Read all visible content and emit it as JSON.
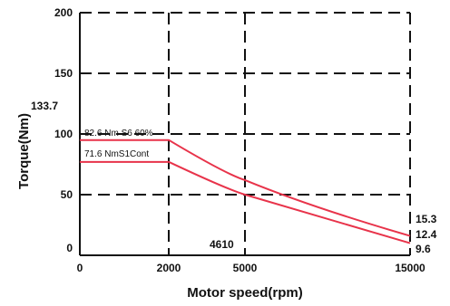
{
  "chart_data": {
    "type": "line",
    "title": "",
    "xlabel": "Motor speed(rpm)",
    "ylabel": "Torque(Nm)",
    "ylim": [
      0,
      200
    ],
    "yticks": [
      "200",
      "150",
      "100",
      "50",
      "0"
    ],
    "xtick_labels": [
      "0",
      "2000",
      "5000",
      "15000"
    ],
    "grid": true,
    "series": [
      {
        "name": "82.6 Nm S6 60%",
        "color": "#e8334a",
        "points": [
          [
            "0",
            95
          ],
          [
            "2000",
            95
          ],
          [
            "5000",
            62
          ],
          [
            "15000",
            16
          ]
        ]
      },
      {
        "name": "71.6 NmS1Cont",
        "color": "#e8334a",
        "points": [
          [
            "0",
            77
          ],
          [
            "2000",
            77
          ],
          [
            "5000",
            50
          ],
          [
            "15000",
            10
          ]
        ]
      }
    ],
    "annotations": {
      "y_extra": "133.7",
      "x_extra": "4610",
      "end_values": [
        "15.3",
        "12.4",
        "9.6"
      ]
    }
  }
}
